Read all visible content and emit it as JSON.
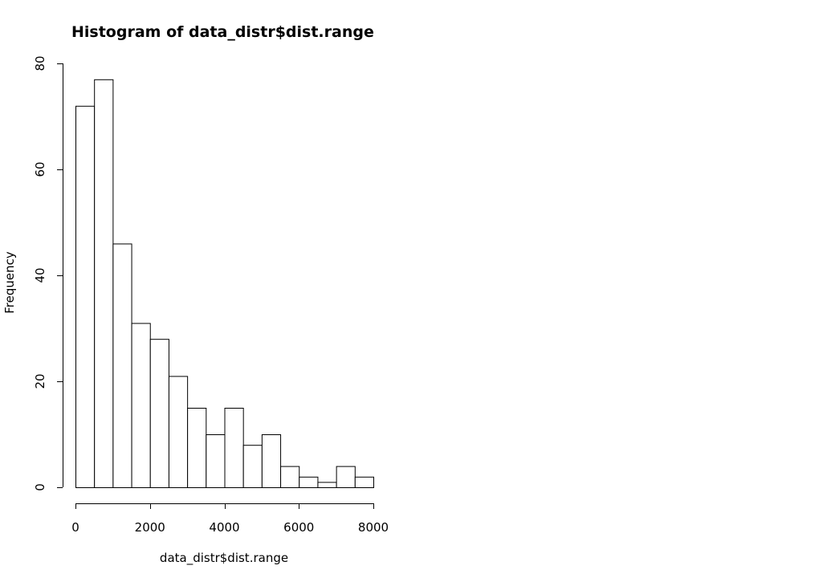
{
  "chart_data": {
    "type": "bar",
    "title": "Histogram of data_distr$dist.range",
    "xlabel": "data_distr$dist.range",
    "ylabel": "Frequency",
    "bin_edges": [
      0,
      500,
      1000,
      1500,
      2000,
      2500,
      3000,
      3500,
      4000,
      4500,
      5000,
      5500,
      6000,
      6500,
      7000,
      7500,
      8000
    ],
    "values": [
      72,
      77,
      46,
      31,
      28,
      21,
      15,
      10,
      15,
      8,
      10,
      4,
      2,
      1,
      4,
      2
    ],
    "xlim": [
      0,
      8000
    ],
    "ylim": [
      0,
      80
    ],
    "x_ticks": [
      0,
      2000,
      4000,
      6000,
      8000
    ],
    "y_ticks": [
      0,
      20,
      40,
      60,
      80
    ],
    "x_tick_labels": [
      "0",
      "2000",
      "4000",
      "6000",
      "8000"
    ],
    "y_tick_labels": [
      "0",
      "20",
      "40",
      "60",
      "80"
    ],
    "grid": false,
    "bar_fill": "#ffffff",
    "bar_stroke": "#000000"
  }
}
